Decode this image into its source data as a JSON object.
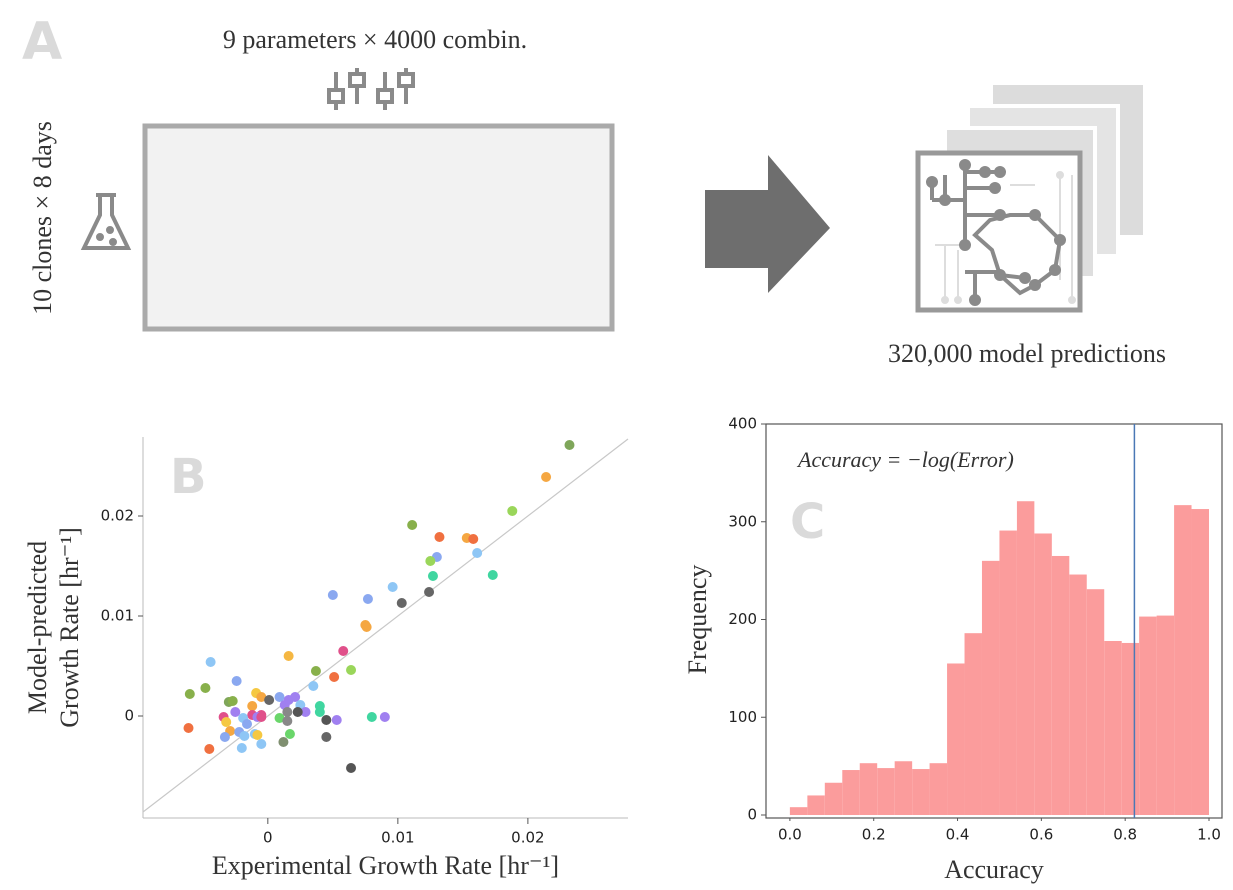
{
  "diagram": {
    "panel_label": "A",
    "top_text": "9 parameters × 4000 combin.",
    "side_text": "10 clones × 8 days",
    "result_text": "320,000 model predictions"
  },
  "chart_data": [
    {
      "type": "scatter",
      "panel_label": "B",
      "xlabel": "Experimental Growth Rate [hr⁻¹]",
      "ylabel": [
        "Model-predicted",
        "Growth Rate [hr⁻¹]"
      ],
      "xlim": [
        -0.0096,
        0.0277
      ],
      "ylim": [
        -0.0102,
        0.0279
      ],
      "xticks": [
        0,
        0.01,
        0.02
      ],
      "yticks": [
        0,
        0.01,
        0.02
      ],
      "diagonal": true,
      "x": [
        0.0232,
        0.0214,
        0.0188,
        0.0111,
        0.0132,
        0.0153,
        0.0158,
        0.0161,
        0.013,
        0.0125,
        0.0173,
        0.0127,
        0.0096,
        0.005,
        0.0077,
        0.0103,
        0.0124,
        0.0075,
        0.0076,
        0.0058,
        0.0064,
        0.0016,
        0.0037,
        0.0051,
        0.0035,
        -0.0044,
        -0.0024,
        -0.0048,
        -0.006,
        -0.0009,
        -0.0005,
        0.0009,
        0.0013,
        0.0016,
        0.0021,
        0.0025,
        0.0029,
        0.004,
        0.004,
        -0.003,
        -0.0027,
        -0.0012,
        -0.0005,
        0.0001,
        -0.0012,
        -0.0034,
        -0.0025,
        -0.0019,
        -0.0016,
        -0.0032,
        -0.0008,
        -0.0005,
        0.0009,
        0.0015,
        0.0015,
        0.0023,
        0.0045,
        0.0053,
        0.008,
        0.009,
        -0.0061,
        -0.0029,
        -0.0022,
        -0.0018,
        -0.001,
        -0.0005,
        0.0012,
        -0.0045,
        -0.002,
        0.0017,
        0.0045,
        0.0064,
        -0.0008,
        -0.0033
      ],
      "values": [
        0.0271,
        0.0239,
        0.0205,
        0.0191,
        0.0179,
        0.0178,
        0.0177,
        0.0163,
        0.0159,
        0.0155,
        0.0141,
        0.014,
        0.0129,
        0.0121,
        0.0117,
        0.0113,
        0.0124,
        0.0091,
        0.0089,
        0.0065,
        0.0046,
        0.006,
        0.0045,
        0.0039,
        0.003,
        0.0054,
        0.0035,
        0.0028,
        0.0022,
        0.0023,
        0.0019,
        0.0019,
        0.0011,
        0.0016,
        0.0019,
        0.0011,
        0.0004,
        0.001,
        0.0004,
        0.0014,
        0.0015,
        0.001,
        0.0001,
        0.0016,
        0.0001,
        -0.0001,
        0.0004,
        -0.0002,
        -0.0008,
        -0.0006,
        -0.0001,
        -0.0001,
        -0.0002,
        -0.0005,
        0.0004,
        0.0004,
        -0.0004,
        -0.0004,
        -0.0001,
        -0.0001,
        -0.0012,
        -0.0015,
        -0.0016,
        -0.002,
        -0.0018,
        -0.0028,
        -0.0026,
        -0.0033,
        -0.0032,
        -0.0018,
        -0.0021,
        -0.0052,
        -0.0019,
        -0.0021
      ],
      "colors": [
        "#7fa65a",
        "#f5a742",
        "#9ad65a",
        "#88b04b",
        "#f07040",
        "#f5a742",
        "#f07040",
        "#8ec6f5",
        "#8aa8f0",
        "#9ad65a",
        "#40d6a0",
        "#40d6a0",
        "#8ec6f5",
        "#8aa8f0",
        "#8aa8f0",
        "#666666",
        "#666666",
        "#f5a742",
        "#f5a742",
        "#e0508a",
        "#9ad65a",
        "#f5b742",
        "#88b04b",
        "#f07040",
        "#8ec6f5",
        "#8ec6f5",
        "#8aa8f0",
        "#88b04b",
        "#88b04b",
        "#f5c842",
        "#f5a742",
        "#8aa8f0",
        "#a080f0",
        "#a080f0",
        "#a080f0",
        "#8ec6f5",
        "#a080f0",
        "#40d6a0",
        "#40d6a0",
        "#7fa65a",
        "#88b04b",
        "#f5a742",
        "#e0508a",
        "#666666",
        "#e0508a",
        "#e0508a",
        "#a080f0",
        "#8ec6f5",
        "#8aa8f0",
        "#f5c842",
        "#a080f0",
        "#e0508a",
        "#6ad66a",
        "#888888",
        "#888888",
        "#555555",
        "#555555",
        "#a080f0",
        "#40d6a0",
        "#a080f0",
        "#f07040",
        "#f5a742",
        "#8aa8f0",
        "#8ec6f5",
        "#8ec6f5",
        "#8ec6f5",
        "#7f8f70",
        "#f07040",
        "#8ec6f5",
        "#6ad66a",
        "#666666",
        "#555555",
        "#f5c842",
        "#8aa8f0"
      ]
    },
    {
      "type": "histogram",
      "panel_label": "C",
      "annotation": "Accuracy = −log(Error)",
      "xlabel": "Accuracy",
      "ylabel": "Frequency",
      "color": "#fb9c9c",
      "vline": 0.822,
      "vline_color": "#4a78b5",
      "xlim": [
        -0.057,
        1.031
      ],
      "ylim": [
        0,
        400
      ],
      "xticks": [
        {
          "value": 0,
          "label": "0.0"
        },
        0.2,
        0.4,
        0.6,
        0.8,
        {
          "value": 1,
          "label": "1.0"
        }
      ],
      "yticks": [
        0,
        100,
        200,
        300,
        400
      ],
      "bins": [
        0,
        0.0417,
        0.0833,
        0.125,
        0.1667,
        0.2083,
        0.25,
        0.2917,
        0.3333,
        0.375,
        0.4167,
        0.4583,
        0.5,
        0.5417,
        0.5833,
        0.625,
        0.6667,
        0.7083,
        0.75,
        0.7917,
        0.8333,
        0.875,
        0.9167,
        0.9583,
        1
      ],
      "values": [
        8,
        20,
        33,
        46,
        53,
        48,
        55,
        47,
        53,
        155,
        186,
        260,
        291,
        321,
        288,
        265,
        246,
        231,
        178,
        176,
        203,
        204,
        317,
        313
      ]
    }
  ]
}
